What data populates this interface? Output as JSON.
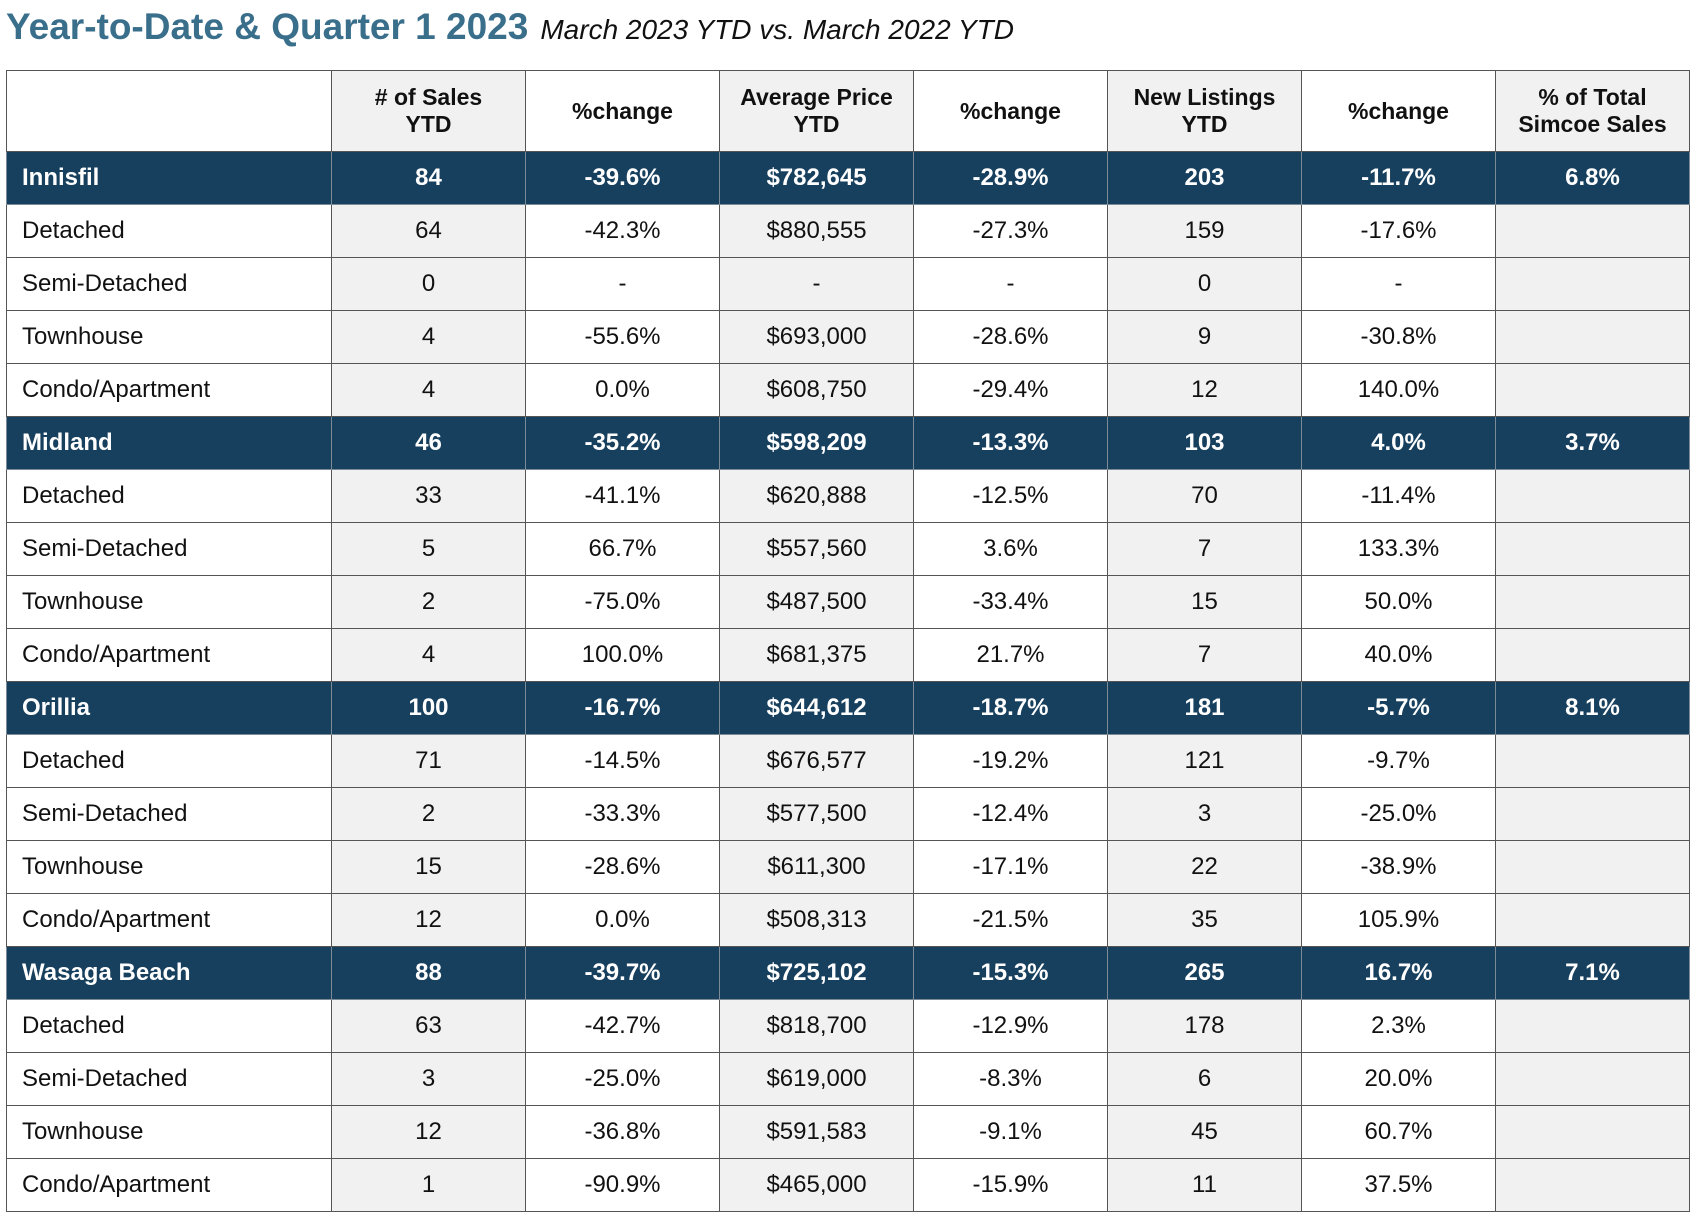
{
  "header": {
    "title": "Year-to-Date & Quarter 1 2023",
    "subtitle": "March 2023 YTD vs. March 2022 YTD"
  },
  "table": {
    "columns": [
      {
        "line1": "",
        "line2": ""
      },
      {
        "line1": "# of Sales",
        "line2": "YTD"
      },
      {
        "line1": "%change",
        "line2": ""
      },
      {
        "line1": "Average Price",
        "line2": "YTD"
      },
      {
        "line1": "%change",
        "line2": ""
      },
      {
        "line1": "New Listings",
        "line2": "YTD"
      },
      {
        "line1": "%change",
        "line2": ""
      },
      {
        "line1": "% of Total",
        "line2": "Simcoe Sales"
      }
    ],
    "groups": [
      {
        "summary": [
          "Innisfil",
          "84",
          "-39.6%",
          "$782,645",
          "-28.9%",
          "203",
          "-11.7%",
          "6.8%"
        ],
        "rows": [
          [
            "Detached",
            "64",
            "-42.3%",
            "$880,555",
            "-27.3%",
            "159",
            "-17.6%",
            ""
          ],
          [
            "Semi-Detached",
            "0",
            "-",
            "-",
            "-",
            "0",
            "-",
            ""
          ],
          [
            "Townhouse",
            "4",
            "-55.6%",
            "$693,000",
            "-28.6%",
            "9",
            "-30.8%",
            ""
          ],
          [
            "Condo/Apartment",
            "4",
            "0.0%",
            "$608,750",
            "-29.4%",
            "12",
            "140.0%",
            ""
          ]
        ]
      },
      {
        "summary": [
          "Midland",
          "46",
          "-35.2%",
          "$598,209",
          "-13.3%",
          "103",
          "4.0%",
          "3.7%"
        ],
        "rows": [
          [
            "Detached",
            "33",
            "-41.1%",
            "$620,888",
            "-12.5%",
            "70",
            "-11.4%",
            ""
          ],
          [
            "Semi-Detached",
            "5",
            "66.7%",
            "$557,560",
            "3.6%",
            "7",
            "133.3%",
            ""
          ],
          [
            "Townhouse",
            "2",
            "-75.0%",
            "$487,500",
            "-33.4%",
            "15",
            "50.0%",
            ""
          ],
          [
            "Condo/Apartment",
            "4",
            "100.0%",
            "$681,375",
            "21.7%",
            "7",
            "40.0%",
            ""
          ]
        ]
      },
      {
        "summary": [
          "Orillia",
          "100",
          "-16.7%",
          "$644,612",
          "-18.7%",
          "181",
          "-5.7%",
          "8.1%"
        ],
        "rows": [
          [
            "Detached",
            "71",
            "-14.5%",
            "$676,577",
            "-19.2%",
            "121",
            "-9.7%",
            ""
          ],
          [
            "Semi-Detached",
            "2",
            "-33.3%",
            "$577,500",
            "-12.4%",
            "3",
            "-25.0%",
            ""
          ],
          [
            "Townhouse",
            "15",
            "-28.6%",
            "$611,300",
            "-17.1%",
            "22",
            "-38.9%",
            ""
          ],
          [
            "Condo/Apartment",
            "12",
            "0.0%",
            "$508,313",
            "-21.5%",
            "35",
            "105.9%",
            ""
          ]
        ]
      },
      {
        "summary": [
          "Wasaga Beach",
          "88",
          "-39.7%",
          "$725,102",
          "-15.3%",
          "265",
          "16.7%",
          "7.1%"
        ],
        "rows": [
          [
            "Detached",
            "63",
            "-42.7%",
            "$818,700",
            "-12.9%",
            "178",
            "2.3%",
            ""
          ],
          [
            "Semi-Detached",
            "3",
            "-25.0%",
            "$619,000",
            "-8.3%",
            "6",
            "20.0%",
            ""
          ],
          [
            "Townhouse",
            "12",
            "-36.8%",
            "$591,583",
            "-9.1%",
            "45",
            "60.7%",
            ""
          ],
          [
            "Condo/Apartment",
            "1",
            "-90.9%",
            "$465,000",
            "-15.9%",
            "11",
            "37.5%",
            ""
          ]
        ]
      }
    ]
  }
}
